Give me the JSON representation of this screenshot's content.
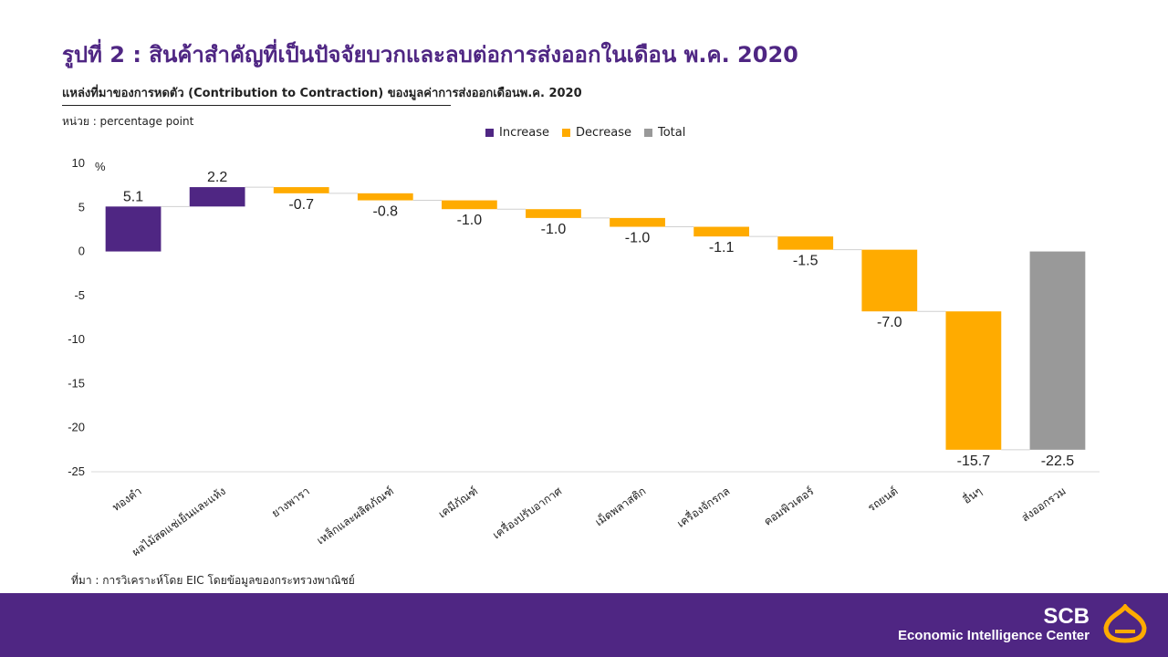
{
  "header": {
    "title": "รูปที่ 2 : สินค้าสำคัญที่เป็นปัจจัยบวกและลบต่อการส่งออกในเดือน พ.ค. 2020",
    "subtitle": "แหล่งที่มาของการหดตัว (Contribution to Contraction) ของมูลค่าการส่งออกเดือนพ.ค. 2020",
    "unit": "หน่วย : percentage  point"
  },
  "legend": [
    {
      "label": "Increase",
      "color": "#4f2683"
    },
    {
      "label": "Decrease",
      "color": "#ffab00"
    },
    {
      "label": "Total",
      "color": "#999999"
    }
  ],
  "source": "ที่มา : การวิเคราะห์โดย EIC โดยข้อมูลของกระทรวงพาณิชย์",
  "footer": {
    "brand": "SCB",
    "center": "Economic Intelligence Center"
  },
  "chart_data": {
    "type": "bar",
    "subtype": "waterfall",
    "categories": [
      "ทองคำ",
      "ผลไม้สดแช่เย็นและแห้ง",
      "ยางพารา",
      "เหล็กและผลิตภัณฑ์",
      "เคมีภัณฑ์",
      "เครื่องปรับอากาศ",
      "เม็ดพลาสติก",
      "เครื่องจักรกล",
      "คอมพิวเตอร์",
      "รถยนต์",
      "อื่นๆ",
      "ส่งออกรวม"
    ],
    "values": [
      5.1,
      2.2,
      -0.7,
      -0.8,
      -1.0,
      -1.0,
      -1.0,
      -1.1,
      -1.5,
      -7.0,
      -15.7,
      -22.5
    ],
    "value_labels": [
      "5.1",
      "2.2",
      "-0.7",
      "-0.8",
      "-1.0",
      "-1.0",
      "-1.0",
      "-1.1",
      "-1.5",
      "-7.0",
      "-15.7",
      "-22.5"
    ],
    "kinds": [
      "increase",
      "increase",
      "decrease",
      "decrease",
      "decrease",
      "decrease",
      "decrease",
      "decrease",
      "decrease",
      "decrease",
      "decrease",
      "total"
    ],
    "ylabel": "%",
    "ylim": [
      -25,
      10
    ],
    "yticks": [
      10,
      5,
      0,
      -5,
      -10,
      -15,
      -20,
      -25
    ],
    "legend_position": "top-center",
    "grid": false,
    "colors": {
      "increase": "#4f2683",
      "decrease": "#ffab00",
      "total": "#999999"
    }
  }
}
